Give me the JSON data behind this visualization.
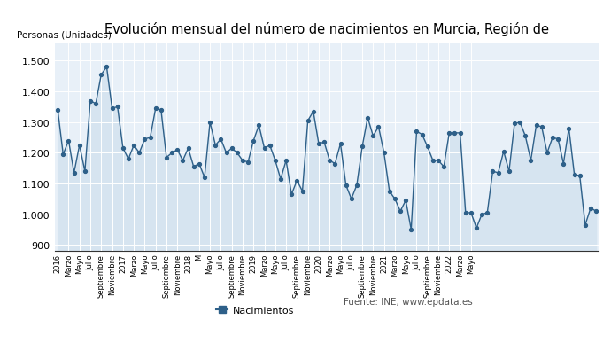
{
  "title": "Evolución mensual del número de nacimientos en Murcia, Región de",
  "ylabel": "Personas (Unidades)",
  "legend_label": "Nacimientos",
  "source_text": "Fuente: INE, www.epdata.es",
  "line_color": "#2e6089",
  "fill_color": "#d6e4f0",
  "background_color": "#e8f0f8",
  "ylim": [
    880,
    1560
  ],
  "yticks": [
    900,
    1000,
    1100,
    1200,
    1300,
    1400,
    1500
  ],
  "values": [
    1340,
    1195,
    1240,
    1135,
    1225,
    1140,
    1370,
    1360,
    1455,
    1480,
    1345,
    1350,
    1215,
    1180,
    1225,
    1200,
    1245,
    1250,
    1345,
    1340,
    1185,
    1200,
    1210,
    1175,
    1215,
    1155,
    1165,
    1120,
    1300,
    1225,
    1245,
    1200,
    1215,
    1200,
    1175,
    1170,
    1240,
    1290,
    1215,
    1225,
    1175,
    1115,
    1175,
    1065,
    1110,
    1075,
    1305,
    1335,
    1230,
    1235,
    1175,
    1165,
    1230,
    1095,
    1050,
    1095,
    1220,
    1315,
    1255,
    1285,
    1200,
    1075,
    1050,
    1010,
    1045,
    950,
    1270,
    1260,
    1220,
    1175,
    1175,
    1155,
    1265,
    1265,
    1265,
    1005,
    1005,
    955,
    1000,
    1005,
    1140,
    1135,
    1205,
    1140,
    1295,
    1300,
    1255,
    1175,
    1290,
    1285,
    1200,
    1250,
    1245,
    1165,
    1280,
    1130,
    1125,
    965,
    1020,
    1010
  ],
  "tick_labels": [
    "2016",
    "Marzo",
    "Mayo",
    "Julio",
    "Septiembre",
    "Noviembre",
    "2017",
    "Marzo",
    "Mayo",
    "Julio",
    "Septiembre",
    "Noviembre",
    "2018",
    "M",
    "Mayo",
    "Julio",
    "Septiembre",
    "Noviembre",
    "2019",
    "Marzo",
    "Mayo",
    "Julio",
    "Septiembre",
    "Noviembre",
    "2020",
    "Marzo",
    "Mayo",
    "Julio",
    "Septiembre",
    "Noviembre",
    "2021",
    "Marzo",
    "Mayo",
    "Julio",
    "Septiembre",
    "Noviembre",
    "2022",
    "Marzo",
    "Mayo"
  ],
  "tick_positions": [
    0,
    2,
    4,
    6,
    8,
    10,
    12,
    14,
    16,
    18,
    20,
    22,
    24,
    26,
    28,
    30,
    32,
    34,
    36,
    38,
    40,
    42,
    44,
    46,
    48,
    50,
    52,
    54,
    56,
    58,
    60,
    62,
    64,
    66,
    68,
    70,
    72,
    74,
    76
  ]
}
